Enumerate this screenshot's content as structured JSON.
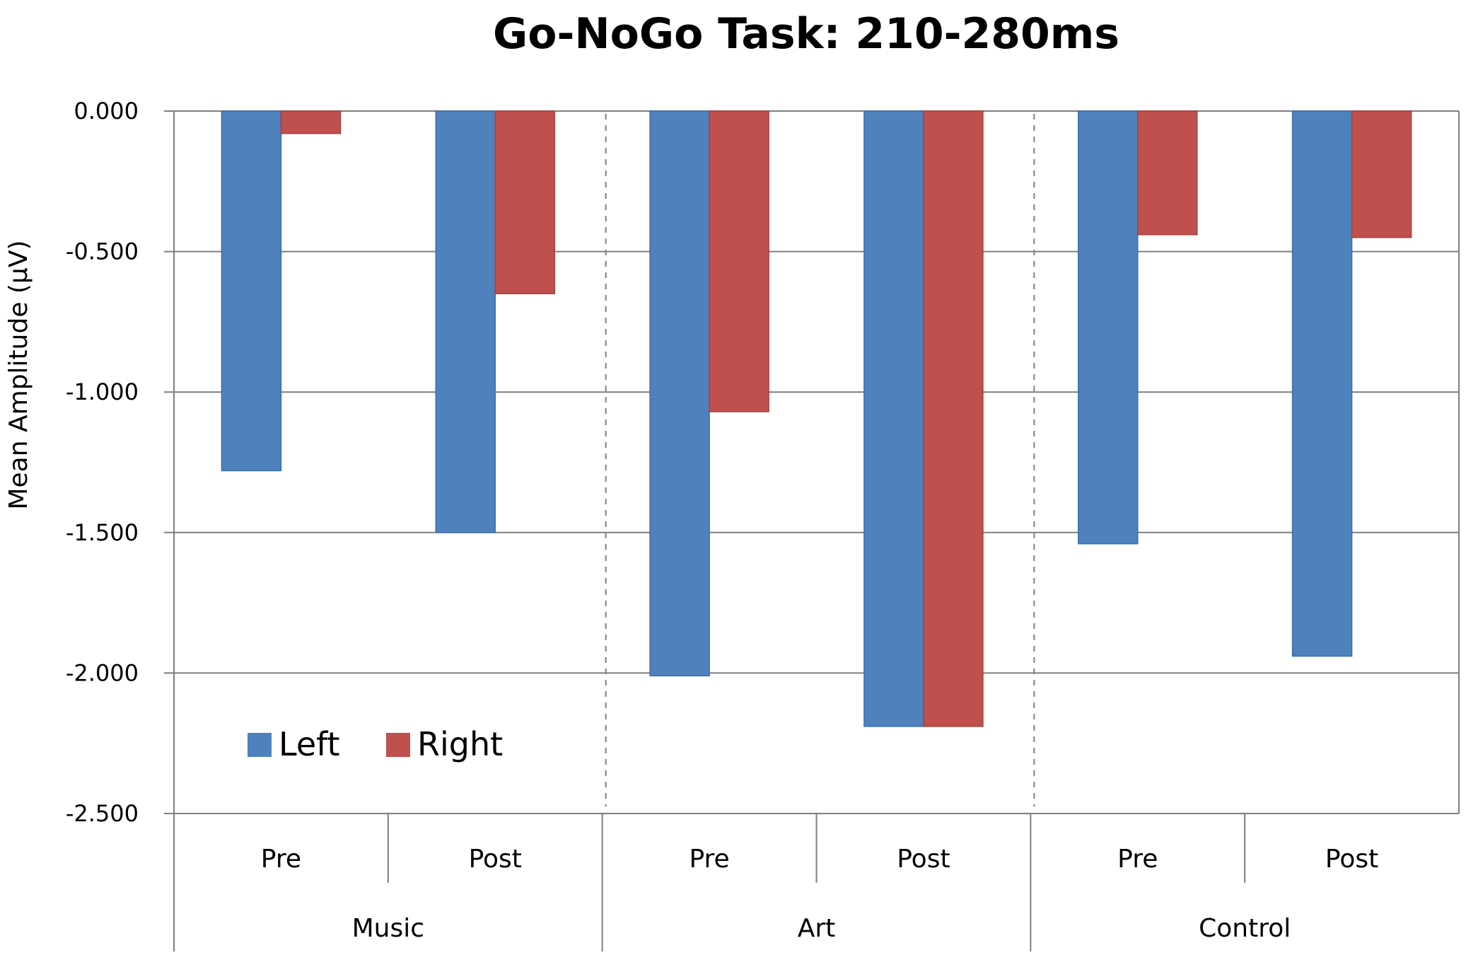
{
  "chart_data": {
    "type": "bar",
    "title": "Go-NoGo Task: 210-280ms",
    "ylabel": "Mean Amplitude (µV)",
    "xlabel": "",
    "ylim": [
      -2.5,
      0
    ],
    "yticks": [
      0,
      -0.5,
      -1,
      -1.5,
      -2,
      -2.5
    ],
    "ytick_labels": [
      "0.000",
      "-0.500",
      "-1.000",
      "-1.500",
      "-2.000",
      "-2.500"
    ],
    "groups": [
      {
        "label": "Music",
        "subcategories": [
          "Pre",
          "Post"
        ]
      },
      {
        "label": "Art",
        "subcategories": [
          "Pre",
          "Post"
        ]
      },
      {
        "label": "Control",
        "subcategories": [
          "Pre",
          "Post"
        ]
      }
    ],
    "categories": [
      "Pre",
      "Post",
      "Pre",
      "Post",
      "Pre",
      "Post"
    ],
    "series": [
      {
        "name": "Left",
        "color": "#4F81BD",
        "values": [
          -1.28,
          -1.5,
          -2.01,
          -2.19,
          -1.54,
          -1.94
        ]
      },
      {
        "name": "Right",
        "color": "#C0504D",
        "values": [
          -0.08,
          -0.65,
          -1.07,
          -2.19,
          -0.44,
          -0.45
        ]
      }
    ],
    "grid": true,
    "legend": {
      "position": "bottom-left"
    }
  }
}
